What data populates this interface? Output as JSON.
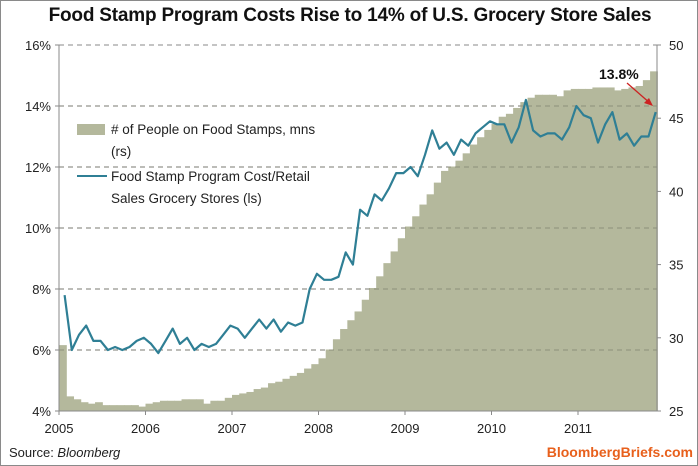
{
  "chart_data": {
    "type": "bar+line",
    "title": "Food Stamp Program Costs Rise to 14% of U.S. Grocery Store Sales",
    "x_tick_labels": [
      "2005",
      "2006",
      "2007",
      "2008",
      "2009",
      "2010",
      "2011"
    ],
    "x_start": "2005-01",
    "frequency": "monthly",
    "left_axis": {
      "label": "",
      "ylim": [
        4,
        16
      ],
      "ticks": [
        "4%",
        "6%",
        "8%",
        "10%",
        "12%",
        "14%",
        "16%"
      ],
      "tick_values": [
        4,
        6,
        8,
        10,
        12,
        14,
        16
      ]
    },
    "right_axis": {
      "label": "",
      "ylim": [
        25,
        50
      ],
      "ticks": [
        "25",
        "30",
        "35",
        "40",
        "45",
        "50"
      ],
      "tick_values": [
        25,
        30,
        35,
        40,
        45,
        50
      ]
    },
    "grid": "dashed horizontal at left-axis ticks",
    "legend_position": "upper-left",
    "series": [
      {
        "name": "# of People on Food Stamps, mns (rs)",
        "type": "bar",
        "axis": "right",
        "color": "#b4b89c",
        "values": [
          29.5,
          26.0,
          25.8,
          25.6,
          25.5,
          25.6,
          25.4,
          25.4,
          25.4,
          25.4,
          25.4,
          25.3,
          25.5,
          25.6,
          25.7,
          25.7,
          25.7,
          25.8,
          25.8,
          25.8,
          25.5,
          25.7,
          25.7,
          25.9,
          26.1,
          26.2,
          26.3,
          26.5,
          26.6,
          26.9,
          27.0,
          27.2,
          27.4,
          27.6,
          27.9,
          28.2,
          28.6,
          29.2,
          29.9,
          30.6,
          31.2,
          31.8,
          32.6,
          33.4,
          34.2,
          35.1,
          35.9,
          36.8,
          37.6,
          38.3,
          39.1,
          39.8,
          40.6,
          41.4,
          41.7,
          42.1,
          42.6,
          43.2,
          43.7,
          44.2,
          44.6,
          45.1,
          45.3,
          45.7,
          46.1,
          46.4,
          46.6,
          46.6,
          46.6,
          46.5,
          46.9,
          47.0,
          47.0,
          47.0,
          47.1,
          47.1,
          47.1,
          46.9,
          47.0,
          47.1,
          47.2,
          47.6,
          48.2
        ],
        "last_value_label": null
      },
      {
        "name": "Food Stamp Program Cost/Retail Sales Grocery Stores (ls)",
        "type": "line",
        "axis": "left",
        "color": "#2f7f95",
        "values": [
          7.8,
          6.0,
          6.5,
          6.8,
          6.3,
          6.3,
          6.0,
          6.1,
          6.0,
          6.1,
          6.3,
          6.4,
          6.2,
          5.9,
          6.3,
          6.7,
          6.2,
          6.4,
          6.0,
          6.2,
          6.1,
          6.2,
          6.5,
          6.8,
          6.7,
          6.4,
          6.7,
          7.0,
          6.7,
          7.0,
          6.6,
          6.9,
          6.8,
          6.9,
          8.0,
          8.5,
          8.3,
          8.3,
          8.4,
          9.2,
          8.8,
          10.6,
          10.4,
          11.1,
          10.9,
          11.3,
          11.8,
          11.8,
          12.0,
          11.7,
          12.4,
          13.2,
          12.6,
          12.8,
          12.4,
          12.9,
          12.7,
          13.1,
          13.3,
          13.5,
          13.4,
          13.4,
          12.8,
          13.3,
          14.2,
          13.2,
          13.0,
          13.1,
          13.1,
          12.9,
          13.3,
          14.0,
          13.7,
          13.6,
          12.8,
          13.4,
          13.8,
          12.9,
          13.1,
          12.7,
          13.0,
          13.0,
          13.8
        ],
        "annotation": {
          "text": "13.8%",
          "color": "#cc2222"
        }
      }
    ]
  },
  "legend": {
    "bar_label_line1": "# of People on Food Stamps, mns",
    "bar_label_line2": "(rs)",
    "line_label_line1": "Food Stamp Program Cost/Retail",
    "line_label_line2": "Sales Grocery Stores (ls)"
  },
  "footer": {
    "source_prefix": "Source: ",
    "source_name": "Bloomberg",
    "brand": "BloombergBriefs.com"
  },
  "colors": {
    "bar": "#b4b89c",
    "line": "#2f7f95",
    "annotation": "#cc2222",
    "brand": "#e8601c",
    "grid": "#888888"
  }
}
